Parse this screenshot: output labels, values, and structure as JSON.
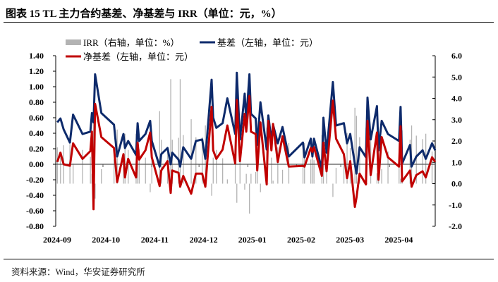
{
  "title": "图表 15 TL 主力合约基差、净基差与 IRR（单位：元，%）",
  "source": "资料来源：Wind，华安证券研究所",
  "chart_data": {
    "type": "line+bar",
    "title": "图表 15 TL 主力合约基差、净基差与 IRR（单位：元，%）",
    "legend": [
      {
        "key": "irr",
        "label": "IRR（右轴，单位：%）",
        "color": "#b3b3b3",
        "kind": "bar"
      },
      {
        "key": "b",
        "label": "基差（左轴，单位：元）",
        "color": "#0d2a6b",
        "kind": "line"
      },
      {
        "key": "n",
        "label": "净基差（左轴，单位：元）",
        "color": "#c00000",
        "kind": "line"
      }
    ],
    "legend_placement": "top",
    "xlim": [
      "2024-09-01",
      "2025-04-30"
    ],
    "x_tick_labels": [
      "2024-09",
      "2024-10",
      "2024-11",
      "2024-12",
      "2025-01",
      "2025-02",
      "2025-03",
      "2025-04"
    ],
    "left_axis": {
      "ylim": [
        -0.8,
        1.4
      ],
      "ticks": [
        "1.40",
        "1.20",
        "1.00",
        "0.80",
        "0.60",
        "0.40",
        "0.20",
        "0.00",
        "-0.20",
        "-0.40",
        "-0.60",
        "-0.80"
      ]
    },
    "right_axis": {
      "ylim": [
        -2.0,
        6.0
      ],
      "ticks": [
        "6.0",
        "5.0",
        "4.0",
        "3.0",
        "2.0",
        "1.0",
        "0.0",
        "-1.0",
        "-2.0"
      ]
    },
    "grid": false,
    "rows": [
      {
        "d": "2024-09-02",
        "b": 0.54,
        "n": 0.03,
        "irr": 1.7
      },
      {
        "d": "2024-09-04",
        "b": 0.59,
        "n": 0.15,
        "irr": 1.32
      },
      {
        "d": "2024-09-06",
        "b": 0.45,
        "n": 0.0,
        "irr": 1.8
      },
      {
        "d": "2024-09-10",
        "b": 0.28,
        "n": -0.02,
        "irr": 1.86
      },
      {
        "d": "2024-09-12",
        "b": 0.64,
        "n": 0.27,
        "irr": 0.94
      },
      {
        "d": "2024-09-18",
        "b": 0.39,
        "n": 0.07,
        "irr": 1.58
      },
      {
        "d": "2024-09-23",
        "b": 0.42,
        "n": 0.17,
        "irr": 1.26
      },
      {
        "d": "2024-09-24",
        "b": 0.66,
        "n": 0.42,
        "irr": 0.46
      },
      {
        "d": "2024-09-25",
        "b": 0.54,
        "n": -0.58,
        "irr": 3.66
      },
      {
        "d": "2024-09-26",
        "b": 1.16,
        "n": 0.78,
        "irr": -0.7
      },
      {
        "d": "2024-09-30",
        "b": 0.66,
        "n": 0.35,
        "irr": 0.68
      },
      {
        "d": "2024-10-08",
        "b": 0.51,
        "n": 0.21,
        "irr": 1.13
      },
      {
        "d": "2024-10-10",
        "b": 0.1,
        "n": -0.23,
        "irr": 2.54
      },
      {
        "d": "2024-10-14",
        "b": 0.39,
        "n": 0.13,
        "irr": 1.38
      },
      {
        "d": "2024-10-15",
        "b": 0.21,
        "n": -0.17,
        "irr": 2.34
      },
      {
        "d": "2024-10-17",
        "b": 0.3,
        "n": 0.07,
        "irr": 1.58
      },
      {
        "d": "2024-10-22",
        "b": 0.12,
        "n": -0.17,
        "irr": 2.34
      },
      {
        "d": "2024-10-23",
        "b": 0.53,
        "n": 0.28,
        "irr": 0.9
      },
      {
        "d": "2024-10-24",
        "b": 0.3,
        "n": 0.06,
        "irr": 1.61
      },
      {
        "d": "2024-10-28",
        "b": 0.39,
        "n": 0.18,
        "irr": 1.22
      },
      {
        "d": "2024-10-31",
        "b": 0.56,
        "n": 0.41,
        "irr": -0.4
      },
      {
        "d": "2024-11-01",
        "b": 0.3,
        "n": 0.09,
        "irr": 1.51
      },
      {
        "d": "2024-11-06",
        "b": -0.03,
        "n": -0.28,
        "irr": 3.4
      },
      {
        "d": "2024-11-07",
        "b": 0.13,
        "n": -0.08,
        "irr": 2.06
      },
      {
        "d": "2024-11-11",
        "b": 0.21,
        "n": 0.04,
        "irr": 1.67
      },
      {
        "d": "2024-11-13",
        "b": 0.0,
        "n": -0.37,
        "irr": 4.9
      },
      {
        "d": "2024-11-14",
        "b": 0.15,
        "n": -0.08,
        "irr": 2.06
      },
      {
        "d": "2024-11-18",
        "b": 0.06,
        "n": -0.11,
        "irr": 2.15
      },
      {
        "d": "2024-11-19",
        "b": -0.03,
        "n": -0.29,
        "irr": 4.9
      },
      {
        "d": "2024-11-21",
        "b": 0.22,
        "n": -0.15,
        "irr": 2.28
      },
      {
        "d": "2024-11-26",
        "b": 0.07,
        "n": -0.38,
        "irr": 3.02
      },
      {
        "d": "2024-11-29",
        "b": 0.3,
        "n": -0.12,
        "irr": 2.18
      },
      {
        "d": "2024-12-03",
        "b": 0.32,
        "n": -0.12,
        "irr": 2.18
      },
      {
        "d": "2024-12-05",
        "b": 0.07,
        "n": -0.29,
        "irr": 2.73
      },
      {
        "d": "2024-12-09",
        "b": 1.09,
        "n": 0.74,
        "irr": -0.57
      },
      {
        "d": "2024-12-10",
        "b": 0.6,
        "n": 0.18,
        "irr": 1.22
      },
      {
        "d": "2024-12-12",
        "b": 0.47,
        "n": 0.07,
        "irr": 1.58
      },
      {
        "d": "2024-12-16",
        "b": 0.53,
        "n": 0.19,
        "irr": 1.19
      },
      {
        "d": "2024-12-19",
        "b": 0.85,
        "n": 0.5,
        "irr": 0.2
      },
      {
        "d": "2024-12-24",
        "b": 0.39,
        "n": 0.01,
        "irr": 1.77
      },
      {
        "d": "2024-12-25",
        "b": 1.18,
        "n": 0.83,
        "irr": -0.9
      },
      {
        "d": "2024-12-27",
        "b": 0.32,
        "n": 0.04,
        "irr": 1.67
      },
      {
        "d": "2024-12-30",
        "b": 0.91,
        "n": 0.65,
        "irr": -0.28
      },
      {
        "d": "2024-12-31",
        "b": 0.56,
        "n": 0.42,
        "irr": 0.46
      },
      {
        "d": "2025-01-02",
        "b": 1.16,
        "n": 0.88,
        "irr": -1.4
      },
      {
        "d": "2025-01-03",
        "b": 0.65,
        "n": 0.42,
        "irr": 0.46
      },
      {
        "d": "2025-01-06",
        "b": 0.59,
        "n": 0.39,
        "irr": 0.55
      },
      {
        "d": "2025-01-07",
        "b": 0.25,
        "n": -0.08,
        "irr": 2.06
      },
      {
        "d": "2025-01-09",
        "b": 0.8,
        "n": 0.54,
        "irr": -0.4
      },
      {
        "d": "2025-01-13",
        "b": 0.19,
        "n": -0.26,
        "irr": 2.63
      },
      {
        "d": "2025-01-14",
        "b": 0.63,
        "n": 0.56,
        "irr": 0.01
      },
      {
        "d": "2025-01-16",
        "b": 0.3,
        "n": 0.18,
        "irr": 1.22
      },
      {
        "d": "2025-01-17",
        "b": 0.51,
        "n": 0.52,
        "irr": 0.14
      },
      {
        "d": "2025-01-20",
        "b": 0.27,
        "n": 0.03,
        "irr": 1.7
      },
      {
        "d": "2025-01-23",
        "b": 0.48,
        "n": 0.36,
        "irr": 0.65
      },
      {
        "d": "2025-01-27",
        "b": 0.1,
        "n": -0.03,
        "irr": 1.9
      },
      {
        "d": "2025-02-05",
        "b": 0.28,
        "n": -0.02,
        "irr": 1.86
      },
      {
        "d": "2025-02-06",
        "b": 0.09,
        "n": -0.03,
        "irr": 1.9
      },
      {
        "d": "2025-02-10",
        "b": 0.33,
        "n": 0.21,
        "irr": 1.13
      },
      {
        "d": "2025-02-11",
        "b": 0.1,
        "n": 0.16,
        "irr": 1.29
      },
      {
        "d": "2025-02-12",
        "b": 0.33,
        "n": 0.22,
        "irr": 1.1
      },
      {
        "d": "2025-02-17",
        "b": -0.06,
        "n": -0.15,
        "irr": 2.28
      },
      {
        "d": "2025-02-18",
        "b": 0.6,
        "n": 0.28,
        "irr": 0.9
      },
      {
        "d": "2025-02-20",
        "b": 0.15,
        "n": -0.09,
        "irr": 2.09
      },
      {
        "d": "2025-02-24",
        "b": 1.06,
        "n": 0.82,
        "irr": -0.62
      },
      {
        "d": "2025-02-26",
        "b": 0.5,
        "n": 0.33,
        "irr": 0.74
      },
      {
        "d": "2025-03-03",
        "b": 0.53,
        "n": 0.13,
        "irr": 1.38
      },
      {
        "d": "2025-03-05",
        "b": 0.27,
        "n": -0.18,
        "irr": 2.38
      },
      {
        "d": "2025-03-07",
        "b": 0.39,
        "n": 0.04,
        "irr": 1.67
      },
      {
        "d": "2025-03-10",
        "b": 0.0,
        "n": -0.55,
        "irr": 3.56
      },
      {
        "d": "2025-03-11",
        "b": -0.12,
        "n": -0.43,
        "irr": 3.18
      },
      {
        "d": "2025-03-13",
        "b": 0.22,
        "n": -0.12,
        "irr": 2.18
      },
      {
        "d": "2025-03-17",
        "b": 0.09,
        "n": -0.26,
        "irr": 2.63
      },
      {
        "d": "2025-03-18",
        "b": 0.86,
        "n": 0.56,
        "irr": 0.01
      },
      {
        "d": "2025-03-20",
        "b": 0.32,
        "n": -0.14,
        "irr": 2.25
      },
      {
        "d": "2025-03-24",
        "b": 0.75,
        "n": 0.41,
        "irr": 0.49
      },
      {
        "d": "2025-03-25",
        "b": 0.18,
        "n": -0.2,
        "irr": 2.44
      },
      {
        "d": "2025-03-27",
        "b": 0.56,
        "n": 0.35,
        "irr": 0.68
      },
      {
        "d": "2025-03-31",
        "b": 0.39,
        "n": 0.09,
        "irr": 1.51
      },
      {
        "d": "2025-04-07",
        "b": 0.3,
        "n": -0.03,
        "irr": 1.9
      },
      {
        "d": "2025-04-08",
        "b": 0.74,
        "n": 0.49,
        "irr": 0.23
      },
      {
        "d": "2025-04-09",
        "b": 0.01,
        "n": -0.22,
        "irr": 2.5
      },
      {
        "d": "2025-04-14",
        "b": 0.25,
        "n": -0.08,
        "irr": 2.06
      },
      {
        "d": "2025-04-15",
        "b": -0.03,
        "n": -0.29,
        "irr": 2.73
      },
      {
        "d": "2025-04-18",
        "b": 0.1,
        "n": -0.14,
        "irr": 2.25
      },
      {
        "d": "2025-04-22",
        "b": 0.18,
        "n": -0.09,
        "irr": 2.09
      },
      {
        "d": "2025-04-24",
        "b": 0.07,
        "n": -0.17,
        "irr": 2.34
      },
      {
        "d": "2025-04-28",
        "b": 0.27,
        "n": 0.09,
        "irr": 1.51
      },
      {
        "d": "2025-04-30",
        "b": 0.18,
        "n": 0.03,
        "irr": 1.7
      }
    ]
  }
}
